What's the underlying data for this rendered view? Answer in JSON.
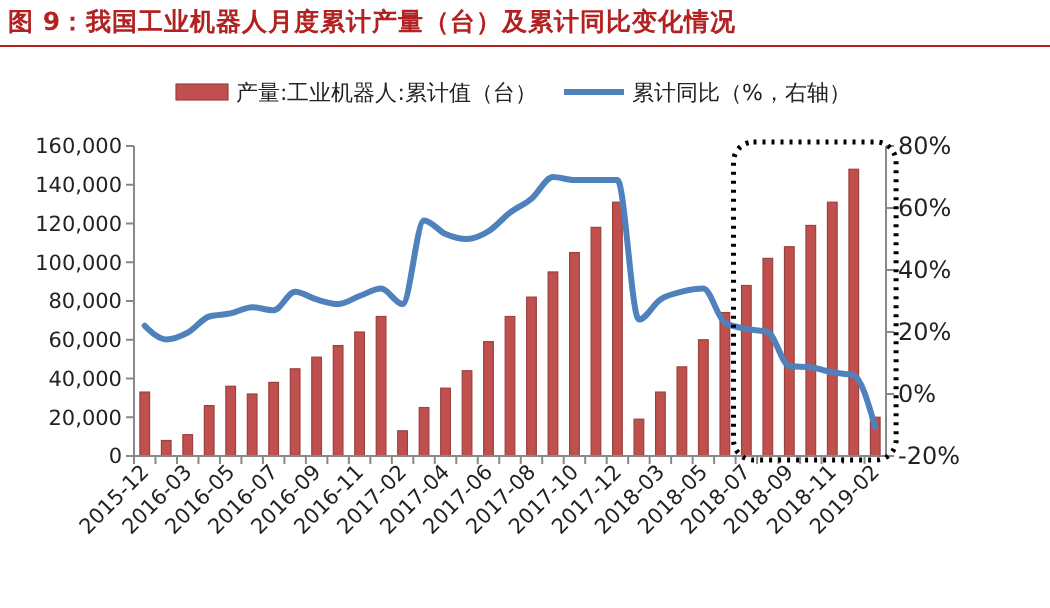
{
  "chart_data": {
    "type": "bar",
    "title": "图 9：我国工业机器人月度累计产量（台）及累计同比变化情况",
    "categories": [
      "2015-12",
      null,
      "2016-03",
      null,
      "2016-05",
      null,
      "2016-07",
      null,
      "2016-09",
      null,
      "2016-11",
      null,
      "2017-02",
      null,
      "2017-04",
      null,
      "2017-06",
      null,
      "2017-08",
      null,
      "2017-10",
      null,
      "2017-12",
      null,
      "2018-03",
      null,
      "2018-05",
      null,
      "2018-07",
      null,
      "2018-09",
      null,
      "2018-11",
      null,
      "2019-02"
    ],
    "series": [
      {
        "name": "产量:工业机器人:累计值（台）",
        "color": "#c0504d",
        "values": [
          33000,
          8000,
          11000,
          26000,
          36000,
          32000,
          38000,
          45000,
          51000,
          57000,
          64000,
          72000,
          13000,
          25000,
          35000,
          44000,
          59000,
          72000,
          82000,
          95000,
          105000,
          118000,
          131000,
          19000,
          33000,
          46000,
          60000,
          74000,
          88000,
          102000,
          108000,
          119000,
          131000,
          148000,
          20000
        ]
      },
      {
        "name": "累计同比（%，右轴）",
        "type": "line",
        "axis": "y2",
        "color": "#4f81bd",
        "values": [
          22,
          17.6,
          19.8,
          25,
          26,
          28,
          27,
          33,
          30.5,
          29,
          31.6,
          34,
          29,
          56,
          51.6,
          50,
          52.5,
          58.5,
          63,
          70,
          69,
          69,
          69,
          24,
          30.5,
          33,
          34,
          23,
          21,
          20,
          9,
          8.6,
          7,
          6,
          -10.7
        ]
      }
    ],
    "ylim": [
      0,
      160000
    ],
    "yticks": [
      {
        "value": 0,
        "label": "0"
      },
      {
        "value": 20000,
        "label": "20,000"
      },
      {
        "value": 40000,
        "label": "40,000"
      },
      {
        "value": 60000,
        "label": "60,000"
      },
      {
        "value": 80000,
        "label": "80,000"
      },
      {
        "value": 100000,
        "label": "100,000"
      },
      {
        "value": 120000,
        "label": "120,000"
      },
      {
        "value": 140000,
        "label": "140,000"
      },
      {
        "value": 160000,
        "label": "160,000"
      }
    ],
    "y2lim": [
      -20,
      80
    ],
    "y2ticks": [
      {
        "value": -20,
        "label": "-20%"
      },
      {
        "value": 0,
        "label": "0%"
      },
      {
        "value": 20,
        "label": "20%"
      },
      {
        "value": 40,
        "label": "40%"
      },
      {
        "value": 60,
        "label": "60%"
      },
      {
        "value": 80,
        "label": "80%"
      }
    ],
    "legend": "top",
    "grid": false,
    "marker": "none",
    "line_style": "solid"
  }
}
